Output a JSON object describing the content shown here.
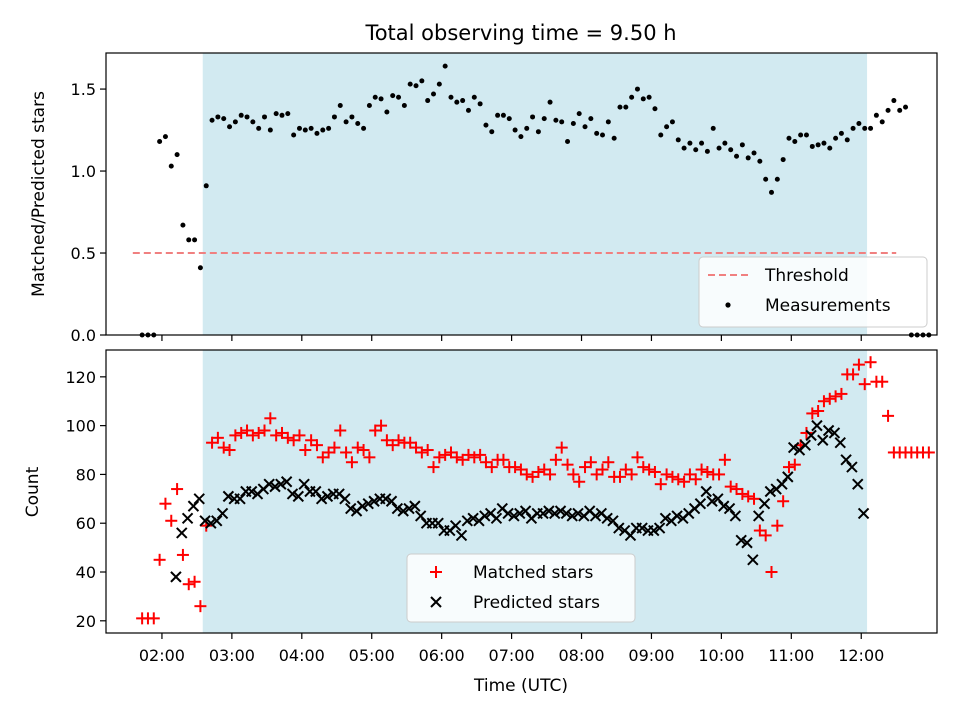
{
  "figure": {
    "title": "Total observing time = 9.50 h",
    "xlabel": "Time (UTC)",
    "xtick_labels": [
      "02:00",
      "03:00",
      "04:00",
      "05:00",
      "06:00",
      "07:00",
      "08:00",
      "09:00",
      "10:00",
      "11:00",
      "12:00"
    ],
    "observing_window": {
      "start": "02:35",
      "end": "12:05",
      "color": "#add8e6"
    }
  },
  "chart_data": [
    {
      "type": "scatter",
      "panel": "top",
      "ylabel": "Matched/Predicted stars",
      "ylim": [
        0,
        1.72
      ],
      "yticks": [
        0.0,
        0.5,
        1.0,
        1.5
      ],
      "ytick_labels": [
        "0.0",
        "0.5",
        "1.0",
        "1.5"
      ],
      "xlim": [
        "01:12",
        "13:05"
      ],
      "legend": {
        "position": "lower-right",
        "entries": [
          "Threshold",
          "Measurements"
        ]
      },
      "threshold": {
        "name": "Threshold",
        "value": 0.5,
        "x_range": [
          "01:35",
          "12:30"
        ],
        "color": "#f08080"
      },
      "series": [
        {
          "name": "Measurements",
          "color": "#000000",
          "x_start": "01:43",
          "x_step_minutes": 5,
          "values": [
            0,
            0,
            0,
            1.18,
            1.21,
            1.03,
            1.1,
            0.67,
            0.58,
            0.58,
            0.41,
            0.91,
            1.31,
            1.33,
            1.32,
            1.27,
            1.3,
            1.34,
            1.33,
            1.3,
            1.26,
            1.33,
            1.25,
            1.35,
            1.34,
            1.35,
            1.22,
            1.26,
            1.25,
            1.26,
            1.23,
            1.25,
            1.26,
            1.33,
            1.4,
            1.3,
            1.33,
            1.29,
            1.26,
            1.4,
            1.45,
            1.44,
            1.36,
            1.46,
            1.45,
            1.4,
            1.53,
            1.52,
            1.55,
            1.43,
            1.47,
            1.53,
            1.64,
            1.45,
            1.42,
            1.43,
            1.37,
            1.45,
            1.41,
            1.28,
            1.24,
            1.34,
            1.34,
            1.32,
            1.25,
            1.21,
            1.26,
            1.33,
            1.24,
            1.32,
            1.42,
            1.31,
            1.3,
            1.18,
            1.29,
            1.35,
            1.27,
            1.32,
            1.23,
            1.22,
            1.3,
            1.2,
            1.39,
            1.39,
            1.45,
            1.5,
            1.44,
            1.45,
            1.38,
            1.22,
            1.27,
            1.3,
            1.19,
            1.14,
            1.17,
            1.13,
            1.17,
            1.12,
            1.26,
            1.14,
            1.17,
            1.13,
            1.09,
            1.16,
            1.08,
            1.11,
            1.06,
            0.95,
            0.87,
            0.95,
            1.07,
            1.2,
            1.18,
            1.22,
            1.22,
            1.15,
            1.16,
            1.17,
            1.14,
            1.2,
            1.23,
            1.19,
            1.26,
            1.29,
            1.26,
            1.26,
            1.34,
            1.3,
            1.37,
            1.43,
            1.37,
            1.39,
            0,
            0,
            0,
            0
          ]
        }
      ]
    },
    {
      "type": "scatter",
      "panel": "bottom",
      "ylabel": "Count",
      "ylim": [
        15,
        131
      ],
      "yticks": [
        20,
        40,
        60,
        80,
        100,
        120
      ],
      "ytick_labels": [
        "20",
        "40",
        "60",
        "80",
        "100",
        "120"
      ],
      "xlim": [
        "01:12",
        "13:05"
      ],
      "legend": {
        "position": "lower-center",
        "entries": [
          "Matched stars",
          "Predicted stars"
        ]
      },
      "series": [
        {
          "name": "Matched stars",
          "marker": "+",
          "color": "#ff0000",
          "x_start": "01:43",
          "x_step_minutes": 5,
          "values": [
            21,
            21,
            21,
            45,
            68,
            61,
            74,
            47,
            35,
            36,
            26,
            59,
            93,
            95,
            91,
            90,
            96,
            97,
            98,
            96,
            97,
            98,
            103,
            96,
            97,
            95,
            94,
            96,
            90,
            94,
            92,
            87,
            89,
            91,
            98,
            89,
            85,
            91,
            90,
            87,
            98,
            100,
            94,
            92,
            94,
            93,
            93,
            91,
            89,
            90,
            83,
            87,
            88,
            89,
            87,
            86,
            88,
            87,
            88,
            85,
            83,
            86,
            86,
            83,
            83,
            82,
            80,
            79,
            81,
            82,
            80,
            86,
            91,
            84,
            80,
            77,
            83,
            85,
            80,
            82,
            85,
            79,
            79,
            82,
            80,
            87,
            83,
            82,
            81,
            76,
            80,
            79,
            78,
            77,
            80,
            78,
            82,
            81,
            80,
            80,
            86,
            75,
            74,
            72,
            71,
            70,
            57,
            55,
            40,
            59,
            69,
            83,
            84,
            92,
            97,
            105,
            106,
            110,
            111,
            112,
            113,
            121,
            121,
            125,
            117,
            126,
            118,
            118,
            104,
            89,
            89,
            89,
            89,
            89,
            89,
            89
          ]
        },
        {
          "name": "Predicted stars",
          "marker": "x",
          "color": "#000000",
          "x_start": "02:12",
          "x_step_minutes": 5,
          "values": [
            38,
            56,
            62,
            67,
            70,
            61,
            60,
            61,
            64,
            71,
            70,
            70,
            73,
            73,
            72,
            74,
            76,
            75,
            76,
            77,
            72,
            71,
            76,
            73,
            73,
            70,
            71,
            72,
            72,
            70,
            66,
            65,
            67,
            68,
            69,
            70,
            70,
            69,
            66,
            65,
            66,
            67,
            63,
            60,
            60,
            60,
            57,
            57,
            59,
            55,
            61,
            62,
            61,
            63,
            64,
            62,
            66,
            64,
            63,
            64,
            65,
            62,
            64,
            64,
            65,
            64,
            65,
            64,
            63,
            64,
            63,
            65,
            63,
            64,
            62,
            61,
            58,
            57,
            55,
            58,
            58,
            57,
            57,
            58,
            62,
            61,
            63,
            62,
            64,
            66,
            68,
            73,
            69,
            70,
            67,
            66,
            63,
            53,
            52,
            45,
            63,
            68,
            73,
            74,
            76,
            79,
            91,
            90,
            92,
            96,
            100,
            94,
            98,
            97,
            93,
            86,
            83,
            76,
            64
          ]
        }
      ]
    }
  ]
}
